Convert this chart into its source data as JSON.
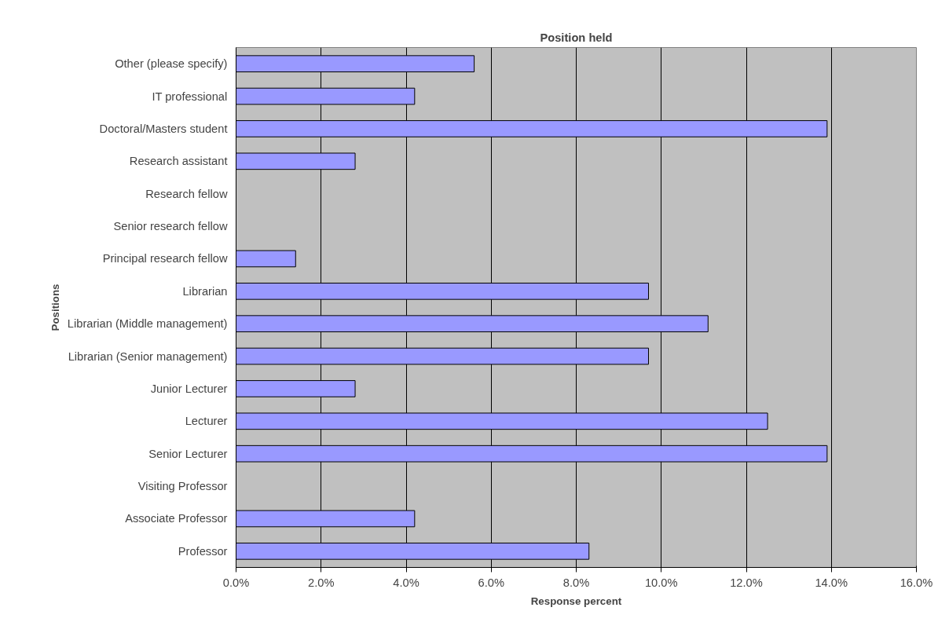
{
  "chart_data": {
    "type": "bar",
    "orientation": "horizontal",
    "title": "Position held",
    "xlabel": "Response percent",
    "ylabel": "Positions",
    "categories": [
      "Other (please specify)",
      "IT professional",
      "Doctoral/Masters student",
      "Research assistant",
      "Research fellow",
      "Senior research fellow",
      "Principal research fellow",
      "Librarian",
      "Librarian (Middle management)",
      "Librarian (Senior management)",
      "Junior Lecturer",
      "Lecturer",
      "Senior Lecturer",
      "Visiting Professor",
      "Associate Professor",
      "Professor"
    ],
    "values": [
      5.6,
      4.2,
      13.9,
      2.8,
      0,
      0,
      1.4,
      9.7,
      11.1,
      9.7,
      2.8,
      12.5,
      13.9,
      0,
      4.2,
      8.3
    ],
    "color": "#9999ff",
    "xlim": [
      0,
      16
    ],
    "xticks": [
      {
        "value": 0,
        "label": "0.0%"
      },
      {
        "value": 2,
        "label": "2.0%"
      },
      {
        "value": 4,
        "label": "4.0%"
      },
      {
        "value": 6,
        "label": "6.0%"
      },
      {
        "value": 8,
        "label": "8.0%"
      },
      {
        "value": 10,
        "label": "10.0%"
      },
      {
        "value": 12,
        "label": "12.0%"
      },
      {
        "value": 14,
        "label": "14.0%"
      },
      {
        "value": 16,
        "label": "16.0%"
      }
    ],
    "grid": "x"
  }
}
